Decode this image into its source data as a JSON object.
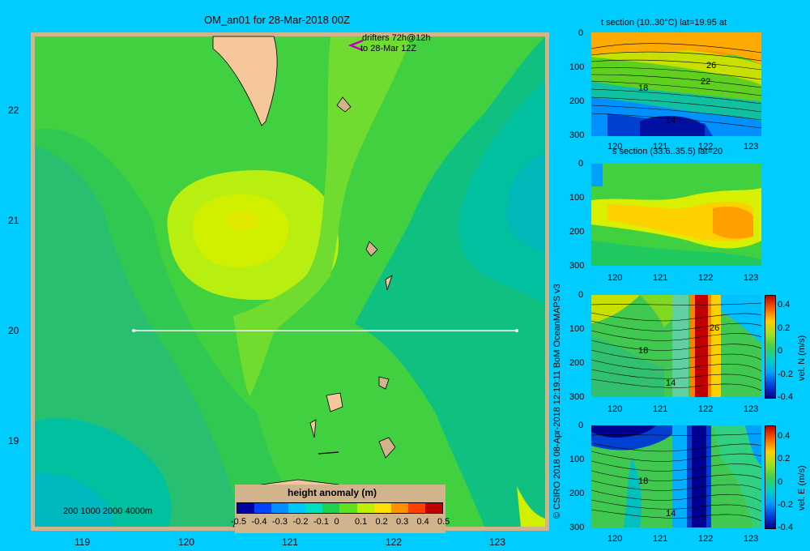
{
  "main_map": {
    "title": "OM_an01 for 28-Mar-2018 00Z",
    "x_ticks": [
      "119",
      "120",
      "121",
      "122",
      "123"
    ],
    "y_ticks": [
      "22",
      "21",
      "20",
      "19"
    ],
    "drifter_note_line1": "drifters 72h@12h",
    "drifter_note_line2": "to 28-Mar 12Z",
    "depth_legend": "200  1000  2000  4000m",
    "section_line_lat": 20,
    "colorbar": {
      "label": "height anomaly (m)",
      "ticks": [
        "-0.5",
        "-0.4",
        "-0.3",
        "-0.2",
        "-0.1",
        "0",
        "0.1",
        "0.2",
        "0.3",
        "0.4",
        "0.5"
      ],
      "colors": [
        "#0000a0",
        "#0040ff",
        "#0090ff",
        "#00c8ff",
        "#00e0c0",
        "#20d050",
        "#60e020",
        "#c0f000",
        "#ffe000",
        "#ff9000",
        "#ff4000",
        "#c00000"
      ]
    }
  },
  "panels": [
    {
      "title": "t section (10..30°C) lat=19.95 at",
      "x_ticks": [
        "120",
        "121",
        "122",
        "123"
      ],
      "y_ticks": [
        "0",
        "100",
        "200",
        "300"
      ],
      "contour_labels": [
        "26",
        "22",
        "18",
        "14"
      ]
    },
    {
      "title": "s section (33.6..35.5) lat=20",
      "x_ticks": [
        "120",
        "121",
        "122",
        "123"
      ],
      "y_ticks": [
        "0",
        "100",
        "200",
        "300"
      ]
    },
    {
      "title": "",
      "x_ticks": [
        "120",
        "121",
        "122",
        "123"
      ],
      "y_ticks": [
        "0",
        "100",
        "200",
        "300"
      ],
      "contour_labels": [
        "26",
        "18",
        "14"
      ],
      "colorbar_ticks": [
        "0.4",
        "0.2",
        "0",
        "-0.2",
        "-0.4"
      ],
      "colorbar_label": "vel. N (m/s)"
    },
    {
      "title": "",
      "x_ticks": [
        "120",
        "121",
        "122",
        "123"
      ],
      "y_ticks": [
        "0",
        "100",
        "200",
        "300"
      ],
      "contour_labels": [
        "18",
        "14"
      ],
      "colorbar_ticks": [
        "0.4",
        "0.2",
        "0",
        "-0.2",
        "-0.4"
      ],
      "colorbar_label": "vel. E (m/s)"
    }
  ],
  "credit": "© CSIRO 2018   08-Apr-2018 12:19:11 BoM OceanMAPS v3"
}
